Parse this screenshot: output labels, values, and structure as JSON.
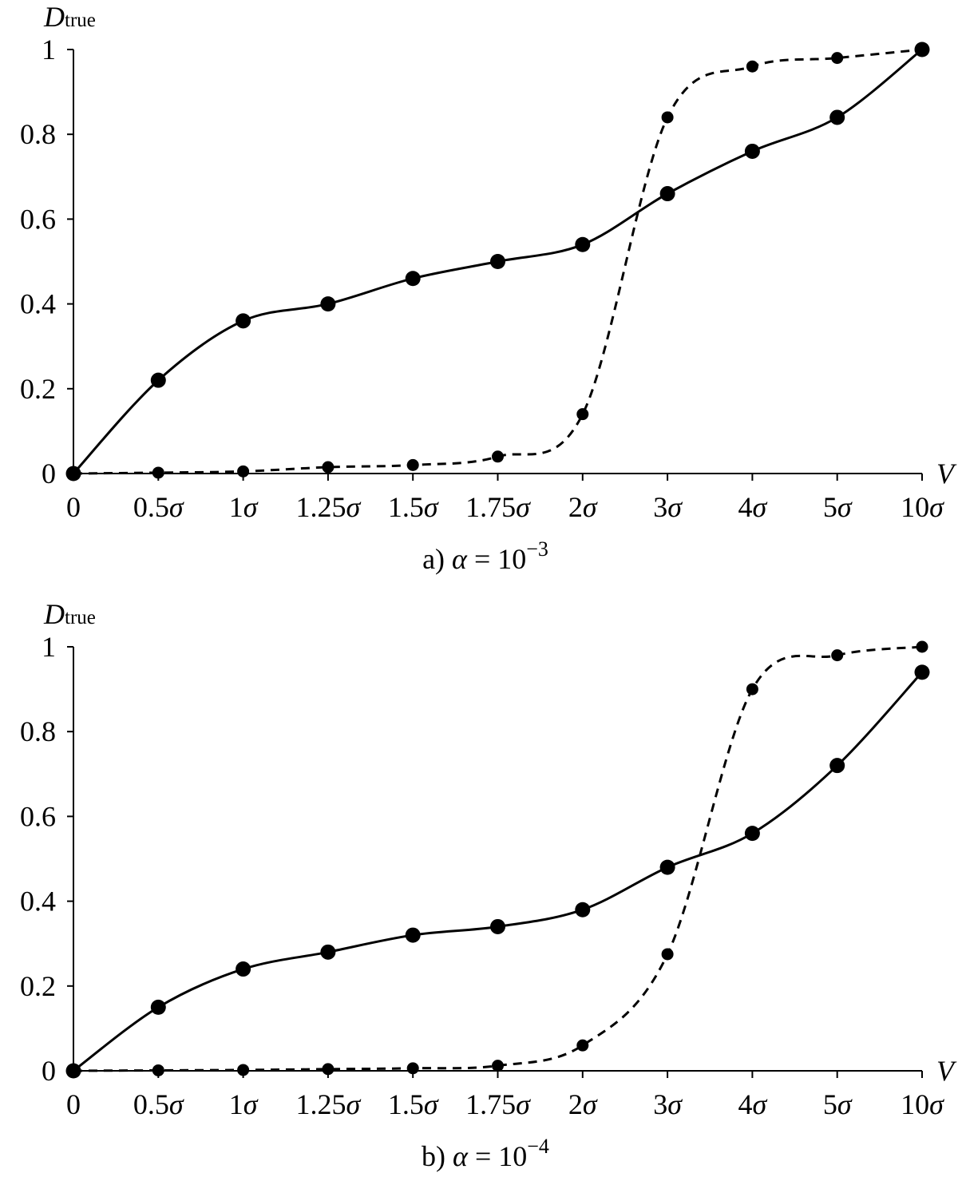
{
  "chart_data": [
    {
      "type": "line",
      "caption": {
        "prefix": "a) ",
        "symbol": "α",
        "eq": " = 10",
        "exp": "−3"
      },
      "ylabel": {
        "main": "D",
        "sub": "true"
      },
      "xlabel": "V",
      "categories": [
        "0",
        "0.5σ",
        "1σ",
        "1.25σ",
        "1.5σ",
        "1.75σ",
        "2σ",
        "3σ",
        "4σ",
        "5σ",
        "10σ"
      ],
      "ylim": [
        0,
        1
      ],
      "yticks": [
        "0",
        "0.2",
        "0.4",
        "0.6",
        "0.8",
        "1"
      ],
      "grid": false,
      "series": [
        {
          "style": "solid",
          "values": [
            0,
            0.22,
            0.36,
            0.4,
            0.46,
            0.5,
            0.54,
            0.66,
            0.76,
            0.84,
            1.0
          ]
        },
        {
          "style": "dashed",
          "values": [
            0,
            0.002,
            0.005,
            0.015,
            0.02,
            0.04,
            0.14,
            0.84,
            0.96,
            0.98,
            1.0
          ]
        }
      ]
    },
    {
      "type": "line",
      "caption": {
        "prefix": "b) ",
        "symbol": "α",
        "eq": " = 10",
        "exp": "−4"
      },
      "ylabel": {
        "main": "D",
        "sub": "true"
      },
      "xlabel": "V",
      "categories": [
        "0",
        "0.5σ",
        "1σ",
        "1.25σ",
        "1.5σ",
        "1.75σ",
        "2σ",
        "3σ",
        "4σ",
        "5σ",
        "10σ"
      ],
      "ylim": [
        0,
        1
      ],
      "yticks": [
        "0",
        "0.2",
        "0.4",
        "0.6",
        "0.8",
        "1"
      ],
      "grid": false,
      "series": [
        {
          "style": "solid",
          "values": [
            0,
            0.15,
            0.24,
            0.28,
            0.32,
            0.34,
            0.38,
            0.48,
            0.56,
            0.72,
            0.94
          ]
        },
        {
          "style": "dashed",
          "values": [
            0,
            0.001,
            0.002,
            0.004,
            0.006,
            0.012,
            0.06,
            0.275,
            0.9,
            0.98,
            1.0
          ]
        }
      ]
    }
  ]
}
